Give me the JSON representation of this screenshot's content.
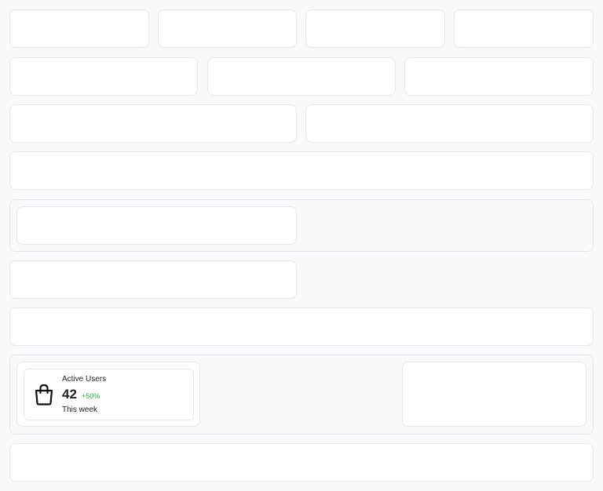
{
  "stat_card": {
    "title": "Active Users",
    "value": "42",
    "change": "+50%",
    "period": "This week",
    "icon": "shopping-bag-icon",
    "change_color": "#2eaa4a"
  }
}
